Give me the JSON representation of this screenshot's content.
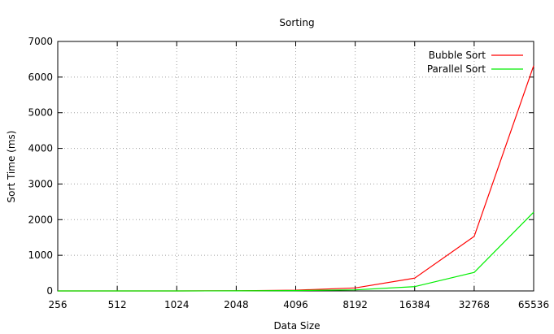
{
  "chart_data": {
    "type": "line",
    "title": "Sorting",
    "xlabel": "Data Size",
    "ylabel": "Sort Time (ms)",
    "x": [
      256,
      512,
      1024,
      2048,
      4096,
      8192,
      16384,
      32768,
      65536
    ],
    "x_tick_labels": [
      "256",
      "512",
      "1024",
      "2048",
      "4096",
      "8192",
      "16384",
      "32768",
      "65536"
    ],
    "x_scale": "log2",
    "ylim": [
      0,
      7000
    ],
    "y_ticks": [
      0,
      1000,
      2000,
      3000,
      4000,
      5000,
      6000,
      7000
    ],
    "y_tick_labels": [
      "0",
      "1000",
      "2000",
      "3000",
      "4000",
      "5000",
      "6000",
      "7000"
    ],
    "grid": true,
    "legend_position": "top-right",
    "series": [
      {
        "name": "Bubble Sort",
        "color": "#ff0000",
        "values": [
          0,
          0,
          1,
          5,
          20,
          85,
          360,
          1530,
          6320
        ]
      },
      {
        "name": "Parallel Sort",
        "color": "#00ee00",
        "values": [
          0,
          0,
          0,
          3,
          10,
          30,
          120,
          520,
          2210
        ]
      }
    ]
  }
}
